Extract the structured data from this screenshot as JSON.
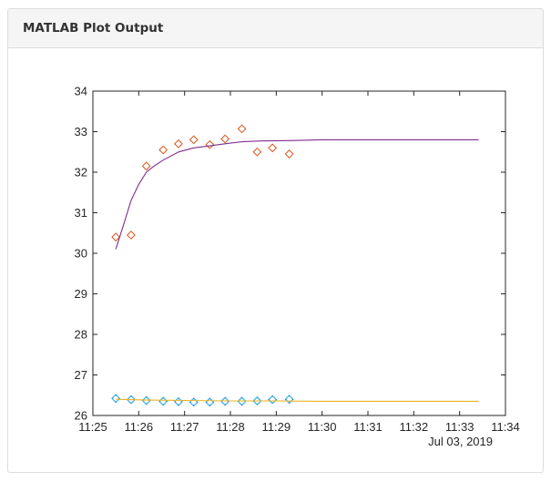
{
  "panel": {
    "title": "MATLAB Plot Output"
  },
  "chart_data": {
    "type": "line",
    "x_unit": "time (Jul 03, 2019)",
    "date_label": "Jul 03, 2019",
    "xlim": [
      "11:25",
      "11:34"
    ],
    "ylim": [
      26,
      34
    ],
    "x_ticks": [
      "11:25",
      "11:26",
      "11:27",
      "11:28",
      "11:29",
      "11:30",
      "11:31",
      "11:32",
      "11:33",
      "11:34"
    ],
    "y_ticks": [
      26,
      27,
      28,
      29,
      30,
      31,
      32,
      33,
      34
    ],
    "grid": false,
    "legend": "none",
    "series": [
      {
        "kind": "markers",
        "marker": "diamond",
        "color": "#D95319",
        "x": [
          "11:25:30",
          "11:25:50",
          "11:26:10",
          "11:26:32",
          "11:26:52",
          "11:27:12",
          "11:27:33",
          "11:27:53",
          "11:28:15",
          "11:28:35",
          "11:28:55",
          "11:29:17"
        ],
        "y": [
          30.4,
          30.45,
          32.15,
          32.55,
          32.7,
          32.8,
          32.68,
          32.82,
          33.07,
          32.5,
          32.6,
          32.45
        ]
      },
      {
        "kind": "line",
        "color": "#7E2F8E",
        "x": [
          "11:25:30",
          "11:25:40",
          "11:25:50",
          "11:26:00",
          "11:26:10",
          "11:26:20",
          "11:26:32",
          "11:26:52",
          "11:27:12",
          "11:27:33",
          "11:27:53",
          "11:28:15",
          "11:28:40",
          "11:29:17",
          "11:30:00",
          "11:31:00",
          "11:32:00",
          "11:33:00",
          "11:33:25"
        ],
        "y": [
          30.1,
          30.7,
          31.3,
          31.7,
          32.0,
          32.15,
          32.3,
          32.5,
          32.6,
          32.65,
          32.7,
          32.75,
          32.77,
          32.78,
          32.8,
          32.8,
          32.8,
          32.8,
          32.8
        ]
      },
      {
        "kind": "markers",
        "marker": "diamond",
        "color": "#0072BD",
        "x": [
          "11:25:30",
          "11:25:50",
          "11:26:10",
          "11:26:32",
          "11:26:52",
          "11:27:12",
          "11:27:33",
          "11:27:53",
          "11:28:15",
          "11:28:35",
          "11:28:55",
          "11:29:17"
        ],
        "y": [
          26.42,
          26.39,
          26.37,
          26.35,
          26.34,
          26.33,
          26.33,
          26.35,
          26.35,
          26.36,
          26.39,
          26.4
        ]
      },
      {
        "kind": "markers",
        "marker": "circle",
        "color": "#4DBEEE",
        "x": [
          "11:25:30",
          "11:25:50",
          "11:26:10",
          "11:26:32",
          "11:26:52",
          "11:27:12",
          "11:27:33",
          "11:27:53",
          "11:28:15",
          "11:28:35",
          "11:28:55",
          "11:29:17"
        ],
        "y": [
          26.42,
          26.39,
          26.37,
          26.35,
          26.34,
          26.33,
          26.33,
          26.35,
          26.35,
          26.36,
          26.39,
          26.4
        ]
      },
      {
        "kind": "line",
        "color": "#EDB120",
        "x": [
          "11:25:30",
          "11:26:10",
          "11:27:00",
          "11:28:00",
          "11:29:00",
          "11:30:00",
          "11:31:00",
          "11:32:00",
          "11:33:00",
          "11:33:25"
        ],
        "y": [
          26.4,
          26.38,
          26.37,
          26.36,
          26.36,
          26.35,
          26.35,
          26.35,
          26.35,
          26.35
        ]
      }
    ]
  }
}
